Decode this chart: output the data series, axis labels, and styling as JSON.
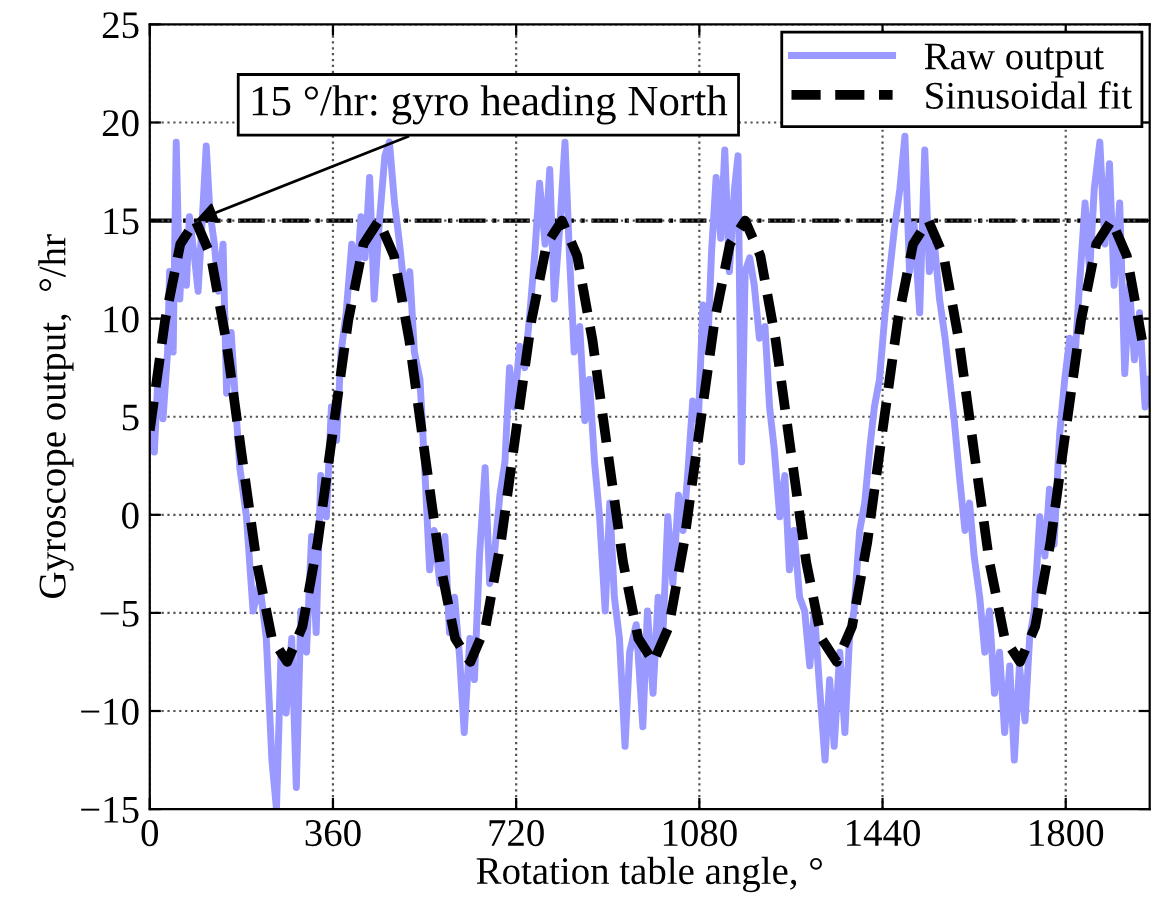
{
  "chart_data": {
    "type": "line",
    "xlabel": "Rotation table angle, °",
    "ylabel": "Gyroscope output,  °/hr",
    "xlim": [
      0,
      1965
    ],
    "ylim": [
      -15,
      25
    ],
    "xticks": [
      0,
      360,
      720,
      1080,
      1440,
      1800
    ],
    "yticks": [
      -15,
      -10,
      -5,
      0,
      5,
      10,
      15,
      20,
      25
    ],
    "grid": true,
    "legend": "top right",
    "ref_lines": [
      {
        "axis": "y",
        "value": 15,
        "color": "#000000",
        "line_style": "dashdot"
      }
    ],
    "annotations": [
      {
        "text": "15 °/hr: gyro heading North",
        "x": 90,
        "y": 15
      }
    ],
    "series": [
      {
        "name": "Raw output",
        "color": "#9999ff",
        "line_style": "solid",
        "x": [
          4,
          9,
          17,
          26,
          35,
          39,
          46,
          52,
          59,
          65,
          72,
          78,
          88,
          95,
          105,
          111,
          118,
          127,
          135,
          144,
          151,
          160,
          170,
          177,
          190,
          203,
          216,
          229,
          240,
          249,
          258,
          268,
          279,
          288,
          297,
          308,
          318,
          327,
          336,
          347,
          357,
          367,
          376,
          386,
          397,
          406,
          415,
          423,
          432,
          441,
          452,
          462,
          471,
          481,
          491,
          502,
          511,
          520,
          531,
          541,
          550,
          559,
          570,
          580,
          589,
          599,
          609,
          618,
          629,
          638,
          648,
          659,
          668,
          677,
          688,
          698,
          707,
          716,
          727,
          737,
          747,
          756,
          766,
          777,
          786,
          795,
          806,
          816,
          825,
          834,
          845,
          855,
          864,
          874,
          884,
          895,
          904,
          913,
          923,
          934,
          943,
          956,
          963,
          969,
          978,
          989,
          999,
          1008,
          1018,
          1028,
          1039,
          1048,
          1057,
          1067,
          1078,
          1087,
          1096,
          1104,
          1113,
          1122,
          1130,
          1139,
          1149,
          1156,
          1163,
          1170,
          1179,
          1188,
          1198,
          1209,
          1218,
          1227,
          1238,
          1248,
          1257,
          1266,
          1277,
          1287,
          1297,
          1306,
          1316,
          1327,
          1336,
          1345,
          1356,
          1366,
          1375,
          1384,
          1395,
          1405,
          1415,
          1424,
          1434,
          1445,
          1454,
          1463,
          1474,
          1484,
          1493,
          1502,
          1513,
          1523,
          1532,
          1542,
          1552,
          1563,
          1572,
          1581,
          1591,
          1602,
          1611,
          1620,
          1631,
          1641,
          1650,
          1660,
          1670,
          1680,
          1690,
          1699,
          1709,
          1720,
          1729,
          1738,
          1749,
          1759,
          1768,
          1777,
          1788,
          1798,
          1808,
          1817,
          1827,
          1838,
          1847,
          1856,
          1867,
          1877,
          1886,
          1895,
          1906,
          1916,
          1925,
          1935,
          1945,
          1956,
          1965
        ],
        "values": [
          5.5,
          3.2,
          7.5,
          4.9,
          8.3,
          12.4,
          8.3,
          19,
          11,
          14.1,
          11.7,
          15.2,
          13.1,
          11.4,
          15.9,
          18.8,
          15.5,
          13.8,
          11.4,
          13.8,
          6.2,
          9.3,
          5.1,
          2.4,
          -0.1,
          -4.9,
          -3.5,
          -6.3,
          -12.5,
          -15,
          -7,
          -10.1,
          -6.3,
          -13.9,
          -4.9,
          -7,
          -1.1,
          -6,
          2,
          -0.1,
          5.5,
          3.8,
          8.3,
          10.3,
          13.8,
          11.7,
          15.2,
          13.1,
          17.2,
          11,
          15.2,
          18.3,
          19,
          15.9,
          13.8,
          11,
          12.4,
          8.3,
          6.9,
          2,
          -2.8,
          -0.8,
          -3.5,
          -1.1,
          -6,
          -4.2,
          -7.3,
          -11.1,
          -6.3,
          -8.4,
          -2.1,
          2.4,
          -3.5,
          -2.1,
          1,
          2.7,
          7.5,
          5.5,
          8.6,
          7.5,
          10.3,
          13.1,
          16.9,
          13.8,
          17.6,
          11,
          14.8,
          19,
          13.1,
          8.3,
          9.6,
          4.8,
          6.9,
          2.7,
          -0.1,
          -4.9,
          0.6,
          -4.2,
          -6.3,
          -11.8,
          -7,
          -5.6,
          -8.4,
          -10.8,
          -4.9,
          -9.1,
          -4.2,
          -6.3,
          -0.1,
          -3.5,
          1,
          -0.8,
          2,
          5.8,
          4.8,
          10.7,
          8.3,
          13.4,
          17.2,
          14.1,
          18.6,
          12.4,
          16.6,
          18.3,
          2.7,
          12.4,
          13.1,
          11.7,
          9,
          9.6,
          5.5,
          3.4,
          -0.1,
          2,
          -2.8,
          -0.8,
          -4.2,
          -4.9,
          -7.7,
          -4.9,
          -8.7,
          -12.5,
          -8.4,
          -11.8,
          -7,
          -11.1,
          -6.3,
          -4.9,
          -0.8,
          0.6,
          3.4,
          5.5,
          6.9,
          10.3,
          12.4,
          14.5,
          16.6,
          19.3,
          12.4,
          14.8,
          10.3,
          18.6,
          12.4,
          13.8,
          11,
          9,
          6.9,
          4.8,
          2,
          -0.8,
          0.6,
          -2.1,
          -4.2,
          -7,
          -4.9,
          -9.1,
          -7,
          -11.1,
          -7.7,
          -12.5,
          -7.7,
          -10.5,
          -6.3,
          -4.9,
          -0.1,
          -2.1,
          1.3,
          -1.5,
          4.1,
          6.9,
          9,
          7.5,
          11.7,
          15.9,
          12.4,
          16.6,
          19,
          13.8,
          17.9,
          11.7,
          15.9,
          7.2,
          11.7,
          7.9,
          10.3,
          5.5,
          6.9
        ]
      },
      {
        "name": "Sinusoidal fit",
        "color": "#000000",
        "line_style": "dashed",
        "x": [
          0,
          30,
          60,
          90,
          120,
          150,
          180,
          210,
          240,
          270,
          300,
          330,
          360,
          390,
          420,
          450,
          480,
          510,
          540,
          570,
          600,
          630,
          660,
          690,
          720,
          750,
          780,
          810,
          840,
          870,
          900,
          930,
          960,
          990,
          1020,
          1050,
          1080,
          1110,
          1140,
          1170,
          1200,
          1230,
          1260,
          1290,
          1320,
          1350,
          1380,
          1410,
          1440,
          1470,
          1500,
          1530,
          1560,
          1590,
          1620,
          1650,
          1680,
          1710,
          1740,
          1770,
          1800,
          1830,
          1860,
          1890,
          1920,
          1950
        ],
        "values": [
          4.3,
          9.9,
          13.8,
          15.0,
          13.2,
          8.9,
          3.2,
          -2.4,
          -6.3,
          -7.5,
          -5.7,
          -1.4,
          4.3,
          9.9,
          13.8,
          15.0,
          13.2,
          8.9,
          3.2,
          -2.4,
          -6.3,
          -7.5,
          -5.7,
          -1.4,
          4.3,
          9.9,
          13.8,
          15.0,
          13.2,
          8.9,
          3.2,
          -2.4,
          -6.3,
          -7.5,
          -5.7,
          -1.4,
          4.3,
          9.9,
          13.8,
          15.0,
          13.2,
          8.9,
          3.2,
          -2.4,
          -6.3,
          -7.5,
          -5.7,
          -1.4,
          4.3,
          9.9,
          13.8,
          15.0,
          13.2,
          8.9,
          3.2,
          -2.4,
          -6.3,
          -7.5,
          -5.7,
          -1.4,
          4.3,
          9.9,
          13.8,
          15.0,
          13.2,
          8.9
        ]
      }
    ]
  }
}
